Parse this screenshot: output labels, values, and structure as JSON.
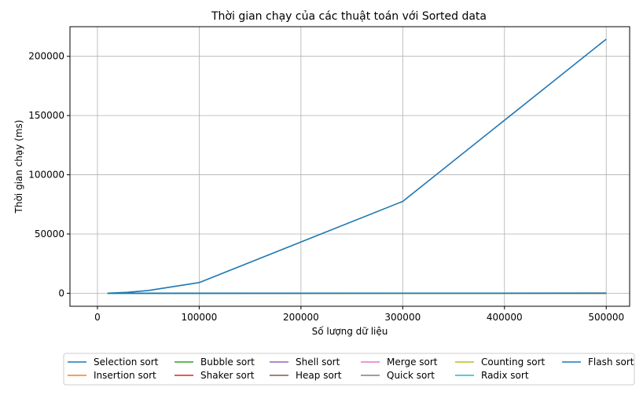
{
  "chart_data": {
    "type": "line",
    "title": "Thời gian chạy của các thuật toán với Sorted data",
    "xlabel": "Số lượng dữ liệu",
    "ylabel": "Thời gian chạy (ms)",
    "xlim": [
      -27000,
      523000
    ],
    "ylim": [
      -11000,
      225000
    ],
    "x": [
      10000,
      30000,
      50000,
      100000,
      300000,
      500000
    ],
    "xticks": [
      0,
      100000,
      200000,
      300000,
      400000,
      500000
    ],
    "xtick_labels": [
      "0",
      "100000",
      "200000",
      "300000",
      "400000",
      "500000"
    ],
    "yticks": [
      0,
      50000,
      100000,
      150000,
      200000
    ],
    "ytick_labels": [
      "0",
      "50000",
      "100000",
      "150000",
      "200000"
    ],
    "grid": true,
    "legend_position": "bottom",
    "series": [
      {
        "name": "Selection sort",
        "color": "#1f77b4",
        "values": [
          90,
          800,
          2300,
          9000,
          77500,
          214500
        ]
      },
      {
        "name": "Insertion sort",
        "color": "#ff7f0e",
        "values": [
          0,
          0,
          0,
          0,
          1,
          2
        ]
      },
      {
        "name": "Bubble sort",
        "color": "#2ca02c",
        "values": [
          0,
          0,
          0,
          1,
          2,
          3
        ]
      },
      {
        "name": "Shaker sort",
        "color": "#d62728",
        "values": [
          0,
          0,
          0,
          0,
          1,
          2
        ]
      },
      {
        "name": "Shell sort",
        "color": "#9467bd",
        "values": [
          1,
          3,
          5,
          10,
          35,
          60
        ]
      },
      {
        "name": "Heap sort",
        "color": "#8c564b",
        "values": [
          2,
          6,
          10,
          22,
          70,
          120
        ]
      },
      {
        "name": "Merge sort",
        "color": "#e377c2",
        "values": [
          2,
          5,
          9,
          19,
          60,
          100
        ]
      },
      {
        "name": "Quick sort",
        "color": "#7f7f7f",
        "values": [
          1,
          2,
          3,
          6,
          20,
          35
        ]
      },
      {
        "name": "Counting sort",
        "color": "#bcbd22",
        "values": [
          0,
          0,
          1,
          1,
          3,
          5
        ]
      },
      {
        "name": "Radix sort",
        "color": "#17becf",
        "values": [
          1,
          3,
          5,
          10,
          30,
          50
        ]
      },
      {
        "name": "Flash sort",
        "color": "#1f77b4",
        "values": [
          1,
          2,
          3,
          6,
          18,
          30
        ]
      }
    ]
  }
}
